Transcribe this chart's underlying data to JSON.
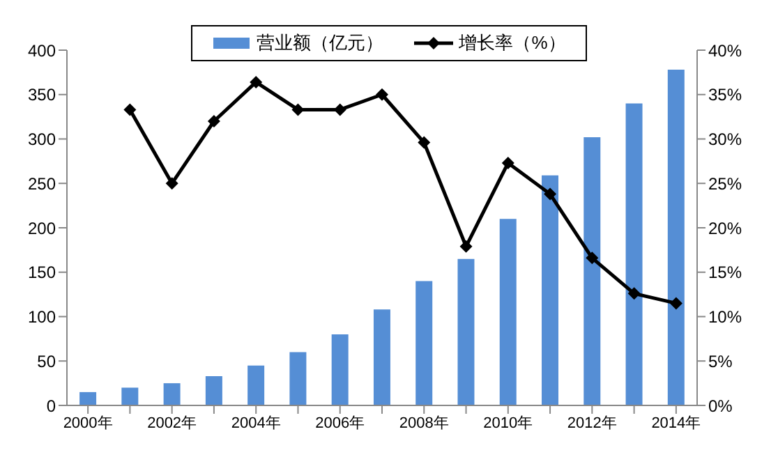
{
  "chart_data": {
    "type": "bar",
    "categories": [
      "2000年",
      null,
      "2002年",
      null,
      "2004年",
      null,
      "2006年",
      null,
      "2008年",
      null,
      "2010年",
      null,
      "2012年",
      null,
      "2014年"
    ],
    "series": [
      {
        "name": "营业额（亿元）",
        "color": "#558ed5",
        "values": [
          15,
          20,
          25,
          33,
          45,
          60,
          80,
          108,
          140,
          165,
          210,
          259,
          302,
          340,
          378
        ]
      },
      {
        "name": "增长率（%）",
        "type": "line",
        "axis": "y2",
        "color": "#000000",
        "marker": "diamond",
        "values": [
          null,
          33.3,
          25,
          32,
          36.4,
          33.3,
          33.3,
          35,
          29.6,
          17.9,
          27.3,
          23.8,
          16.6,
          12.6,
          11.5
        ]
      }
    ],
    "ylim": [
      0,
      400
    ],
    "yticks": [
      0,
      50,
      100,
      150,
      200,
      250,
      300,
      350,
      400
    ],
    "y2lim": [
      0,
      40
    ],
    "y2ticks": [
      {
        "value": 0,
        "label": "0%"
      },
      {
        "value": 5,
        "label": "5%"
      },
      {
        "value": 10,
        "label": "10%"
      },
      {
        "value": 15,
        "label": "15%"
      },
      {
        "value": 20,
        "label": "20%"
      },
      {
        "value": 25,
        "label": "25%"
      },
      {
        "value": 30,
        "label": "30%"
      },
      {
        "value": 35,
        "label": "35%"
      },
      {
        "value": 40,
        "label": "40%"
      }
    ],
    "grid": false,
    "legend": "top"
  }
}
